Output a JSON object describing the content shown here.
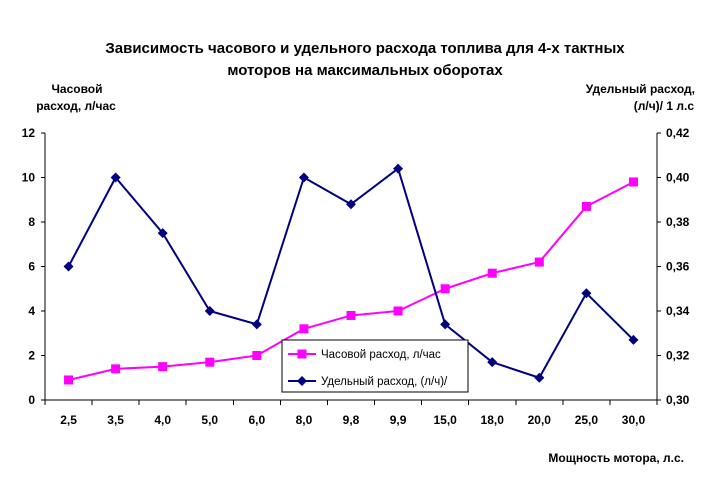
{
  "chart_data": {
    "type": "line",
    "title": [
      "Зависимость часового и удельного расхода топлива для 4-х тактных",
      "моторов на максимальных оборотах"
    ],
    "xlabel": "Мощность мотора, л.с.",
    "ylabel_left": [
      "Часовой",
      "расход, л/час"
    ],
    "ylabel_right": [
      "Удельный расход,",
      "(л/ч)/ 1 л.с"
    ],
    "categories": [
      "2,5",
      "3,5",
      "4,0",
      "5,0",
      "6,0",
      "8,0",
      "9,8",
      "9,9",
      "15,0",
      "18,0",
      "20,0",
      "25,0",
      "30,0"
    ],
    "y_left": {
      "range": [
        0,
        12
      ],
      "tick_labels": [
        "0",
        "2",
        "4",
        "6",
        "8",
        "10",
        "12"
      ]
    },
    "y_right": {
      "range": [
        0.3,
        0.42
      ],
      "tick_labels": [
        "0,30",
        "0,32",
        "0,34",
        "0,36",
        "0,38",
        "0,40",
        "0,42"
      ]
    },
    "grid": false,
    "legend": {
      "placement": "bottom-center"
    },
    "series": [
      {
        "name": "Часовой расход, л/час",
        "axis": "left",
        "color": "#FF00FF",
        "marker": "square",
        "values": [
          0.9,
          1.4,
          1.5,
          1.7,
          2.0,
          3.2,
          3.8,
          4.0,
          5.0,
          5.7,
          6.2,
          8.7,
          9.8
        ]
      },
      {
        "name": "Удельный расход, (л/ч)/",
        "axis": "right",
        "color": "#000080",
        "marker": "diamond",
        "values": [
          0.36,
          0.4,
          0.375,
          0.34,
          0.334,
          0.4,
          0.388,
          0.404,
          0.334,
          0.317,
          0.31,
          0.348,
          0.327
        ]
      }
    ]
  }
}
